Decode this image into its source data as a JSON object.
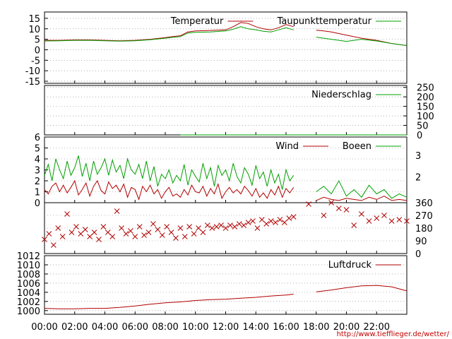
{
  "source_url": "http://www.tiefflieger.de/wetter/",
  "colors": {
    "red": "#b00000",
    "green": "#00a000",
    "grid": "#808080",
    "axis": "#000000"
  },
  "x_axis": {
    "ticks": [
      "00:00",
      "02:00",
      "04:00",
      "06:00",
      "08:00",
      "10:00",
      "12:00",
      "14:00",
      "16:00",
      "18:00",
      "20:00",
      "22:00"
    ]
  },
  "chart_data": [
    {
      "type": "line",
      "yticks": [
        15,
        10,
        5,
        0,
        -5,
        -10,
        -15
      ],
      "ylim": [
        -16,
        18
      ],
      "series": [
        {
          "name": "Temperatur",
          "color": "#b00000",
          "x": [
            0,
            1,
            2,
            3,
            4,
            5,
            6,
            7,
            8,
            8.5,
            9,
            9.5,
            10,
            11,
            12,
            12.5,
            13,
            13.5,
            14,
            14.5,
            15,
            15.5,
            16,
            16.5,
            17,
            17.5,
            18,
            18.5,
            19,
            20,
            21,
            22,
            23,
            24
          ],
          "y": [
            4.5,
            4.5,
            4.7,
            4.7,
            4.5,
            4.3,
            4.5,
            5,
            5.8,
            6.3,
            6.7,
            8.5,
            9,
            9.2,
            9.5,
            11,
            13,
            12.5,
            11,
            10,
            9.5,
            10.5,
            12,
            11,
            null,
            null,
            9.3,
            9,
            8.5,
            7,
            5.5,
            4.5,
            3,
            2
          ]
        },
        {
          "name": "Taupunkttemperatur",
          "color": "#00a000",
          "x": [
            0,
            1,
            2,
            3,
            4,
            5,
            6,
            7,
            8,
            8.5,
            9,
            9.5,
            10,
            11,
            12,
            12.5,
            13,
            13.5,
            14,
            14.5,
            15,
            15.5,
            16,
            16.5,
            17,
            17.5,
            18,
            18.5,
            19,
            20,
            21,
            22,
            23,
            24
          ],
          "y": [
            4.2,
            4.3,
            4.5,
            4.5,
            4.3,
            4.1,
            4.3,
            4.8,
            5.5,
            5.9,
            6.3,
            8,
            8.3,
            8.5,
            9,
            9.8,
            11,
            10,
            9.5,
            8.8,
            8.5,
            9.5,
            10.5,
            9.5,
            null,
            null,
            6,
            5.5,
            5,
            4,
            5,
            4.2,
            3,
            2
          ]
        }
      ]
    },
    {
      "type": "line",
      "yticks": [
        250,
        200,
        150,
        100,
        50,
        0
      ],
      "ylim": [
        0,
        260
      ],
      "series": [
        {
          "name": "Niederschlag",
          "color": "#00a000",
          "x": [
            9,
            24
          ],
          "y": [
            0,
            0
          ]
        }
      ]
    },
    {
      "type": "line",
      "yticks": [
        6,
        5,
        4,
        3,
        2,
        1,
        0
      ],
      "ylim": [
        0,
        6
      ],
      "y2ticks": [
        3,
        2
      ],
      "series": [
        {
          "name": "Wind",
          "color": "#b00000",
          "x": [
            0,
            0.25,
            0.5,
            0.75,
            1,
            1.25,
            1.5,
            1.75,
            2,
            2.25,
            2.5,
            2.75,
            3,
            3.25,
            3.5,
            3.75,
            4,
            4.25,
            4.5,
            4.75,
            5,
            5.25,
            5.5,
            5.75,
            6,
            6.25,
            6.5,
            6.75,
            7,
            7.25,
            7.5,
            7.75,
            8,
            8.25,
            8.5,
            8.75,
            9,
            9.25,
            9.5,
            9.75,
            10,
            10.25,
            10.5,
            10.75,
            11,
            11.25,
            11.5,
            11.75,
            12,
            12.25,
            12.5,
            12.75,
            13,
            13.25,
            13.5,
            13.75,
            14,
            14.25,
            14.5,
            14.75,
            15,
            15.25,
            15.5,
            15.75,
            16,
            16.25,
            16.5,
            17,
            17.5,
            18,
            18.5,
            19,
            19.5,
            20,
            20.5,
            21,
            21.5,
            22,
            22.5,
            23,
            23.5,
            24
          ],
          "y": [
            1.2,
            0.8,
            1.5,
            1.8,
            1,
            1.6,
            0.9,
            1.4,
            2,
            0.7,
            1.2,
            1.8,
            0.6,
            1.5,
            2,
            1.1,
            0.8,
            1.9,
            1.3,
            1.6,
            1,
            1.7,
            0.5,
            1.4,
            1.2,
            0.3,
            1.5,
            1,
            1.6,
            0.8,
            1.2,
            0.4,
            1,
            1.4,
            0.6,
            0.8,
            0.5,
            1.2,
            0.7,
            1.6,
            1,
            0.9,
            1.5,
            0.6,
            1.3,
            0.8,
            1.7,
            0.4,
            1,
            1.4,
            0.9,
            1.2,
            0.8,
            1.5,
            1.1,
            0.6,
            1.3,
            0.5,
            0.9,
            0.4,
            1.2,
            0.7,
            1.5,
            0.5,
            1.3,
            0.9,
            1.4,
            null,
            null,
            0.2,
            0.5,
            0.3,
            0.2,
            0.4,
            0.3,
            0.2,
            0.5,
            0.3,
            0.6,
            0.2,
            0.3,
            0.2
          ]
        },
        {
          "name": "Boeen",
          "color": "#00a000",
          "x": [
            0,
            0.25,
            0.5,
            0.75,
            1,
            1.25,
            1.5,
            1.75,
            2,
            2.25,
            2.5,
            2.75,
            3,
            3.25,
            3.5,
            3.75,
            4,
            4.25,
            4.5,
            4.75,
            5,
            5.25,
            5.5,
            5.75,
            6,
            6.25,
            6.5,
            6.75,
            7,
            7.25,
            7.5,
            7.75,
            8,
            8.25,
            8.5,
            8.75,
            9,
            9.25,
            9.5,
            9.75,
            10,
            10.25,
            10.5,
            10.75,
            11,
            11.25,
            11.5,
            11.75,
            12,
            12.25,
            12.5,
            12.75,
            13,
            13.25,
            13.5,
            13.75,
            14,
            14.25,
            14.5,
            14.75,
            15,
            15.25,
            15.5,
            15.75,
            16,
            16.25,
            16.5,
            17,
            17.5,
            18,
            18.5,
            19,
            19.5,
            20,
            20.5,
            21,
            21.5,
            22,
            22.5,
            23,
            23.5,
            24
          ],
          "y": [
            2.5,
            3.5,
            2,
            4,
            3,
            2.2,
            3.8,
            2.5,
            3.2,
            4.3,
            2.4,
            3.6,
            2,
            3.8,
            2.6,
            3.2,
            4,
            2.5,
            3.9,
            2.8,
            3.4,
            2.2,
            4,
            3,
            2.6,
            3.5,
            2.2,
            3.8,
            2,
            3.3,
            1.5,
            2.6,
            2.2,
            3,
            1.8,
            2.5,
            2,
            3.5,
            1.6,
            3,
            2.4,
            1.9,
            3.6,
            2.2,
            3.2,
            1.5,
            3.4,
            2.5,
            3,
            2,
            3.6,
            2.4,
            1.8,
            3.2,
            2.6,
            1.6,
            3.4,
            2.2,
            2.8,
            1.5,
            3,
            1.8,
            2.6,
            1.2,
            3,
            2,
            2.5,
            null,
            null,
            1,
            1.5,
            0.8,
            2,
            0.6,
            1.2,
            0.5,
            1.6,
            0.8,
            1.2,
            0.4,
            0.8,
            0.5
          ]
        }
      ]
    },
    {
      "type": "scatter",
      "y2ticks": [
        360,
        270,
        180,
        90,
        0
      ],
      "ylim": [
        0,
        360
      ],
      "points": {
        "x": [
          0,
          0.3,
          0.6,
          0.9,
          1.2,
          1.5,
          1.8,
          2.1,
          2.4,
          2.7,
          3,
          3.3,
          3.6,
          3.9,
          4.2,
          4.5,
          4.8,
          5.1,
          5.4,
          5.7,
          6,
          6.3,
          6.6,
          6.9,
          7.2,
          7.5,
          7.8,
          8.1,
          8.4,
          8.7,
          9,
          9.3,
          9.6,
          9.9,
          10.2,
          10.5,
          10.8,
          11.1,
          11.4,
          11.7,
          12,
          12.3,
          12.6,
          12.9,
          13.2,
          13.5,
          13.8,
          14.1,
          14.4,
          14.7,
          15,
          15.3,
          15.6,
          15.9,
          16.2,
          16.5,
          17.5,
          18.5,
          19,
          19.5,
          20,
          20.5,
          21,
          21.5,
          22,
          22.5,
          23,
          23.5,
          24
        ],
        "y": [
          100,
          140,
          60,
          180,
          120,
          280,
          150,
          190,
          140,
          170,
          120,
          150,
          100,
          190,
          150,
          120,
          300,
          180,
          140,
          160,
          120,
          190,
          130,
          150,
          210,
          170,
          130,
          190,
          150,
          110,
          180,
          120,
          190,
          140,
          180,
          150,
          200,
          180,
          190,
          200,
          180,
          200,
          190,
          210,
          200,
          220,
          230,
          180,
          240,
          210,
          230,
          220,
          240,
          220,
          250,
          260,
          350,
          270,
          360,
          320,
          310,
          200,
          280,
          230,
          250,
          270,
          230,
          240,
          230
        ]
      },
      "color": "#b00000"
    },
    {
      "type": "line",
      "yticks": [
        1012,
        1010,
        1008,
        1006,
        1004,
        1002,
        1000
      ],
      "ylim": [
        999.2,
        1012
      ],
      "series": [
        {
          "name": "Luftdruck",
          "color": "#b00000",
          "x": [
            0,
            1,
            2,
            3,
            4,
            5,
            6,
            7,
            8,
            9,
            10,
            11,
            12,
            13,
            14,
            15,
            16,
            16.5,
            17,
            17.5,
            18,
            19,
            20,
            21,
            22,
            23,
            24
          ],
          "y": [
            1000.5,
            1000.4,
            1000.4,
            1000.5,
            1000.5,
            1000.7,
            1001,
            1001.4,
            1001.7,
            1001.9,
            1002.2,
            1002.4,
            1002.5,
            1002.7,
            1002.9,
            1003.2,
            1003.4,
            1003.6,
            null,
            null,
            1004.1,
            1004.5,
            1005,
            1005.4,
            1005.5,
            1005.2,
            1004.3
          ]
        }
      ]
    }
  ]
}
